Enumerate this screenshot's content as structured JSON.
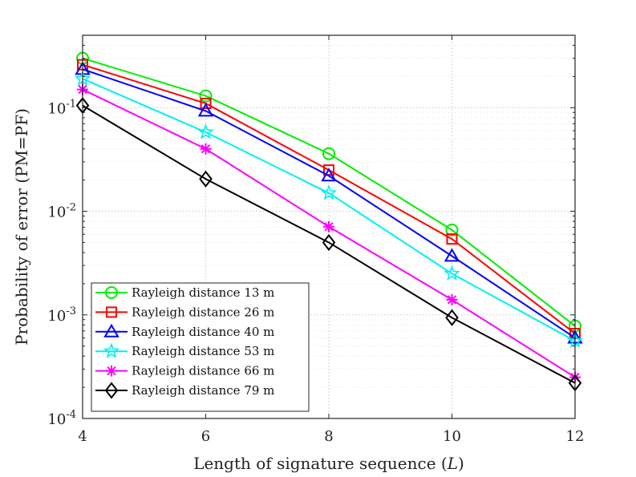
{
  "chart_data": {
    "type": "line",
    "xlabel_prefix": "Length of signature sequence (",
    "xlabel_var": "L",
    "xlabel_suffix": ")",
    "ylabel": "Probability of error (PM=PF)",
    "yscale": "log",
    "xlim": [
      4,
      12
    ],
    "ylim": [
      0.0001,
      0.5
    ],
    "x": [
      4,
      6,
      8,
      10,
      12
    ],
    "x_tick_labels": [
      "4",
      "6",
      "8",
      "10",
      "12"
    ],
    "y_ticks": [
      {
        "value": 0.1,
        "base": "10",
        "exp": "-1"
      },
      {
        "value": 0.01,
        "base": "10",
        "exp": "-2"
      },
      {
        "value": 0.001,
        "base": "10",
        "exp": "-3"
      },
      {
        "value": 0.0001,
        "base": "10",
        "exp": "-4"
      }
    ],
    "grid": true,
    "legend_position": "bottom-left",
    "series": [
      {
        "name": "Rayleigh distance 13 m",
        "color": "#00ee00",
        "marker": "circle",
        "values": [
          0.3,
          0.13,
          0.036,
          0.0066,
          0.00078
        ]
      },
      {
        "name": "Rayleigh distance 26 m",
        "color": "#ff0000",
        "marker": "square",
        "values": [
          0.26,
          0.11,
          0.025,
          0.0054,
          0.00066
        ]
      },
      {
        "name": "Rayleigh distance 40 m",
        "color": "#0000ff",
        "marker": "triangle",
        "values": [
          0.235,
          0.093,
          0.022,
          0.0037,
          0.0006
        ]
      },
      {
        "name": "Rayleigh distance 53 m",
        "color": "#00f0f0",
        "marker": "star",
        "values": [
          0.19,
          0.058,
          0.015,
          0.0025,
          0.00056
        ]
      },
      {
        "name": "Rayleigh distance 66 m",
        "color": "#ff00ff",
        "marker": "asterisk",
        "values": [
          0.15,
          0.04,
          0.0071,
          0.0014,
          0.00025
        ]
      },
      {
        "name": "Rayleigh distance 79 m",
        "color": "#000000",
        "marker": "diamond",
        "values": [
          0.105,
          0.0205,
          0.005,
          0.00094,
          0.00022
        ]
      }
    ]
  }
}
